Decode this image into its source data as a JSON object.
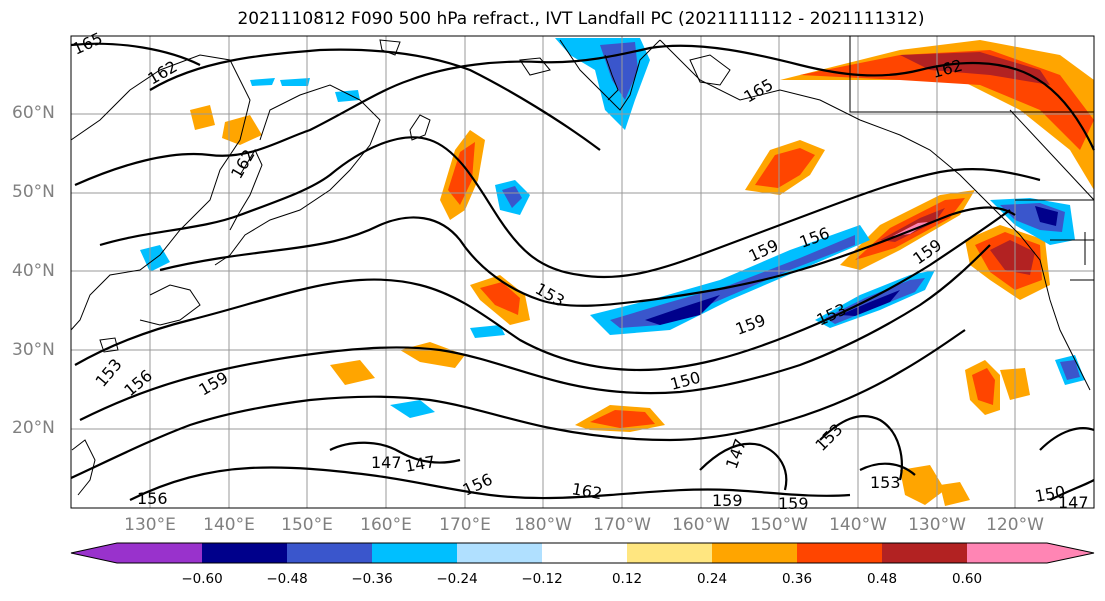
{
  "title": "2021110812 F090 500 hPa refract., IVT Landfall PC (2021111112 - 2021111312)",
  "lat_labels": [
    "60°N",
    "50°N",
    "40°N",
    "30°N",
    "20°N"
  ],
  "lon_labels": [
    "130°E",
    "140°E",
    "150°E",
    "160°E",
    "170°E",
    "180°W",
    "170°W",
    "160°W",
    "150°W",
    "140°W",
    "130°W",
    "120°W"
  ],
  "contour_labels": [
    "165",
    "162",
    "162",
    "165",
    "162",
    "159",
    "156",
    "159",
    "153",
    "159",
    "153",
    "156",
    "159",
    "150",
    "147",
    "147",
    "156",
    "162",
    "147",
    "153",
    "153",
    "159",
    "159",
    "150",
    "147",
    "156",
    "153"
  ],
  "colorbar": {
    "ticks": [
      "−0.60",
      "−0.48",
      "−0.36",
      "−0.24",
      "−0.12",
      "0.12",
      "0.24",
      "0.36",
      "0.48",
      "0.60"
    ],
    "colors": [
      "#9932cc",
      "#00008b",
      "#3a56cc",
      "#00bfff",
      "#b0e0ff",
      "#ffffff",
      "#ffe680",
      "#ffa500",
      "#ff4500",
      "#b22222",
      "#ff85b4"
    ]
  }
}
